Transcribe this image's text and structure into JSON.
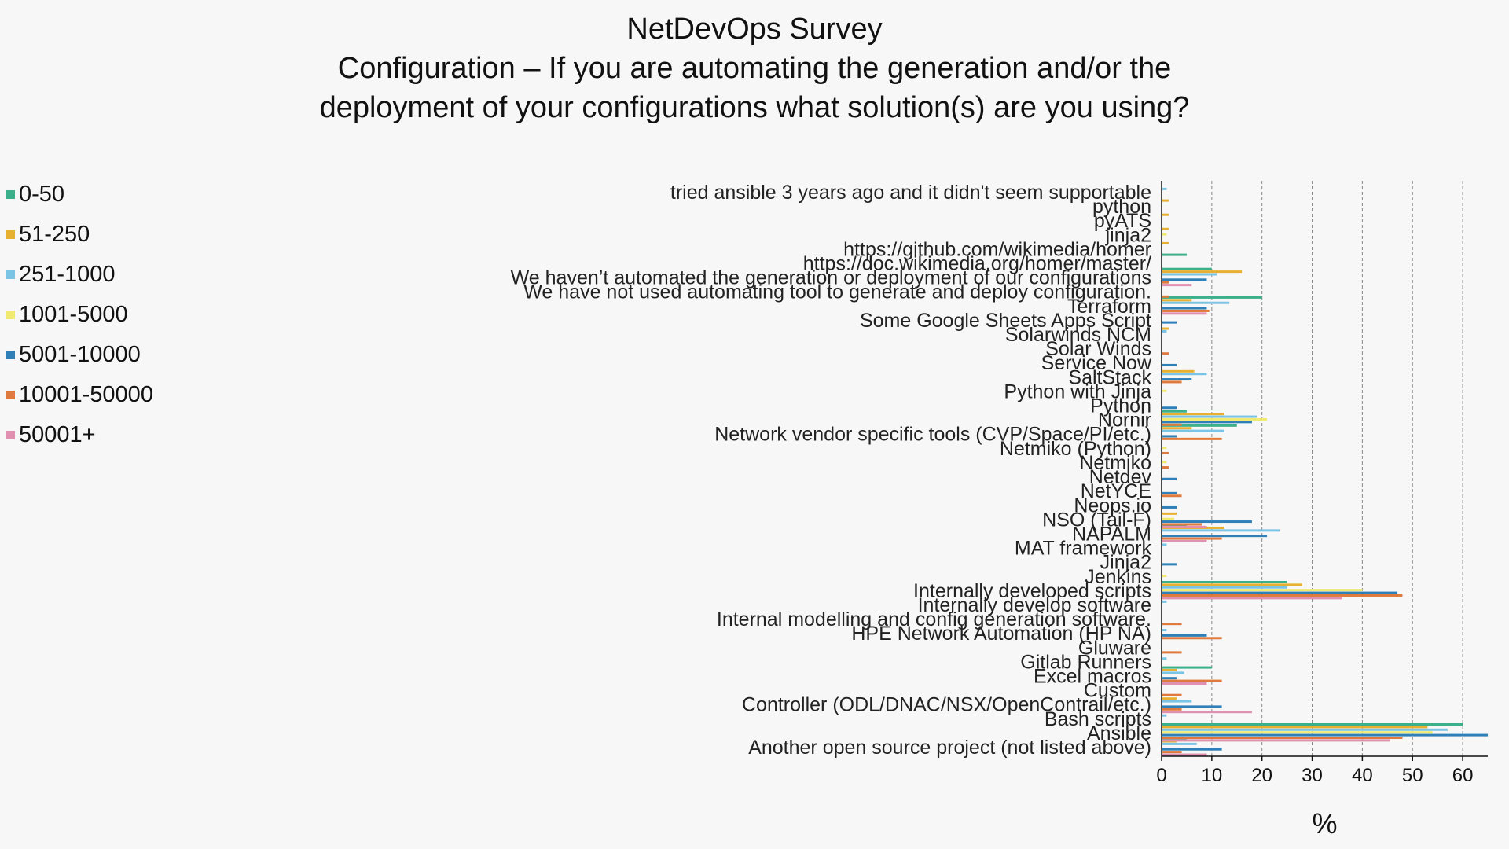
{
  "chart_data": {
    "type": "bar",
    "orientation": "horizontal",
    "title": "NetDevOps Survey",
    "subtitle_lines": [
      "Configuration – If you are automating the generation and/or the",
      "deployment of your configurations what solution(s) are you using?"
    ],
    "xlabel": "%",
    "ylabel": "",
    "xlim": [
      0,
      65
    ],
    "xticks": [
      0,
      10,
      20,
      30,
      40,
      50,
      60
    ],
    "grid": "vertical dashed",
    "legend_position": "left",
    "categories": [
      "tried ansible 3 years ago and it didn't seem supportable",
      "python",
      "pyATS",
      "jinja2",
      "https://github.com/wikimedia/homer",
      "https://doc.wikimedia.org/homer/master/",
      "We haven’t automated the generation or deployment of our configurations",
      "We have not used automating tool to generate and deploy configuration.",
      "Terraform",
      "Some Google Sheets Apps Script",
      "Solarwinds NCM",
      "Solar Winds",
      "Service Now",
      "SaltStack",
      "Python with Jinja",
      "Python",
      "Nornir",
      "Network vendor specific tools (CVP/Space/PI/etc.)",
      "Netmiko (Python)",
      "Netmiko",
      "Netdev",
      "NetYCE",
      "Neops.io",
      "NSO (Tail-F)",
      "NAPALM",
      "MAT framework",
      "Jinja2",
      "Jenkins",
      "Internally developed scripts",
      "Internally develop software",
      "Internal modelling and config generation software.",
      "HPE Network Automation (HP NA)",
      "Gluware",
      "Gitlab Runners",
      "Excel macros",
      "Custom",
      "Controller (ODL/DNAC/NSX/OpenContrail/etc.)",
      "Bash scripts",
      "Ansible",
      "Another open source project (not listed above)"
    ],
    "series": [
      {
        "name": "0-50",
        "color": "#3cb08a",
        "values": [
          0,
          0,
          0,
          0,
          0,
          5,
          10,
          0,
          20,
          0,
          0,
          0,
          0,
          0,
          0,
          0,
          5,
          15,
          0,
          0,
          0,
          0,
          0,
          0,
          5,
          0,
          0,
          0,
          25,
          0,
          0,
          0,
          0,
          0,
          10,
          0,
          0,
          0,
          60,
          5
        ]
      },
      {
        "name": "51-250",
        "color": "#e8b030",
        "values": [
          0,
          1.5,
          1.5,
          1.5,
          1.5,
          0,
          16,
          0,
          6,
          0,
          1.5,
          0,
          0,
          6.5,
          0,
          0,
          12.5,
          6,
          0,
          0,
          0,
          0,
          0,
          3,
          12.5,
          0,
          0,
          0,
          28,
          0,
          0,
          0,
          0,
          0,
          3,
          0,
          3,
          0,
          53,
          3
        ]
      },
      {
        "name": "251-1000",
        "color": "#7ac4e6",
        "values": [
          1,
          0,
          0,
          0,
          0,
          0,
          11,
          0,
          13.5,
          0,
          1,
          0,
          0,
          9,
          0,
          0,
          19,
          12.5,
          0,
          0,
          0,
          0,
          0,
          0,
          23.5,
          1,
          0,
          0,
          25,
          1,
          0,
          1,
          0,
          1,
          4.5,
          0,
          6,
          1,
          57,
          7
        ]
      },
      {
        "name": "1001-5000",
        "color": "#f0ea70",
        "values": [
          0,
          0,
          0,
          1,
          0,
          0,
          0,
          0,
          0,
          0,
          0,
          0,
          0,
          0,
          1,
          0,
          21,
          0,
          1,
          1,
          0,
          0,
          0,
          2.5,
          0,
          0,
          0,
          1,
          40,
          0,
          0,
          0,
          0,
          0,
          0,
          0,
          0,
          0,
          54,
          0
        ]
      },
      {
        "name": "5001-10000",
        "color": "#2f80b8",
        "values": [
          0,
          0,
          0,
          0,
          0,
          0,
          9,
          0,
          9,
          3,
          0,
          0,
          3,
          6,
          0,
          3,
          18,
          3,
          0,
          0,
          3,
          3,
          3,
          18,
          21,
          0,
          3,
          0,
          47,
          0,
          0,
          9,
          0,
          0,
          3,
          0,
          12,
          0,
          65,
          12
        ]
      },
      {
        "name": "10001-50000",
        "color": "#e07a3c",
        "values": [
          0,
          0,
          0,
          0,
          0,
          0,
          1.5,
          1.5,
          9.5,
          0,
          0,
          1.5,
          0,
          4,
          0,
          0,
          4,
          12,
          1.5,
          1.5,
          0,
          4,
          0,
          8,
          12,
          0,
          0,
          0,
          48,
          0,
          4,
          12,
          4,
          0,
          12,
          4,
          4,
          0,
          48,
          4
        ]
      },
      {
        "name": "50001+",
        "color": "#e090b0",
        "values": [
          0,
          0,
          0,
          0,
          0,
          0,
          6,
          0,
          9,
          0,
          0,
          0,
          0,
          0,
          0,
          0,
          0,
          0,
          0,
          0,
          0,
          0,
          0,
          9,
          9,
          0,
          0,
          0,
          36,
          0,
          0,
          0,
          0,
          0,
          9,
          0,
          18,
          0,
          45.5,
          9
        ]
      }
    ]
  }
}
